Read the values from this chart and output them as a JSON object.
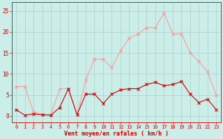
{
  "hours": [
    0,
    1,
    2,
    3,
    4,
    5,
    6,
    7,
    8,
    9,
    10,
    11,
    12,
    13,
    14,
    15,
    16,
    17,
    18,
    19,
    20,
    21,
    22,
    23
  ],
  "vent_moyen": [
    1.5,
    0.2,
    0.5,
    0.3,
    0.2,
    2.0,
    6.5,
    0.3,
    5.2,
    5.2,
    3.0,
    5.2,
    6.2,
    6.5,
    6.5,
    7.5,
    8.0,
    7.2,
    7.5,
    8.2,
    5.2,
    3.2,
    4.0,
    1.5
  ],
  "rafales": [
    7.0,
    7.0,
    1.0,
    0.3,
    0.3,
    6.5,
    6.5,
    0.3,
    8.5,
    13.5,
    13.5,
    11.5,
    15.5,
    18.5,
    19.5,
    21.0,
    21.0,
    24.5,
    19.5,
    19.5,
    15.0,
    13.0,
    10.5,
    5.0
  ],
  "bg_color": "#cceee8",
  "grid_color": "#aacccc",
  "line_color_moyen": "#cc0000",
  "line_color_rafales": "#ff9999",
  "xlabel": "Vent moyen/en rafales ( km/h )",
  "ylabel_ticks": [
    0,
    5,
    10,
    15,
    20,
    25
  ],
  "ylim": [
    -1.5,
    27
  ],
  "xlim": [
    -0.5,
    23.5
  ],
  "xlabel_color": "#cc0000",
  "tick_color": "#cc0000",
  "tick_fontsize": 5.0,
  "xlabel_fontsize": 6.0
}
